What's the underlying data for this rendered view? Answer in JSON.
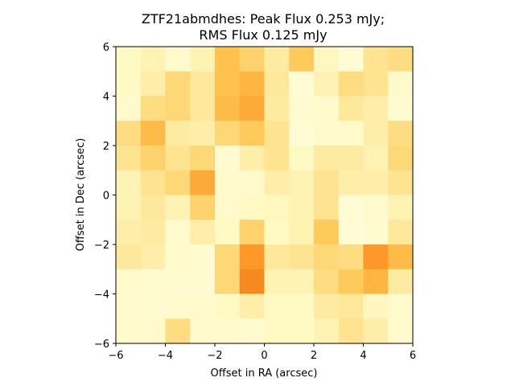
{
  "chart_data": {
    "type": "heatmap",
    "title_line1": "ZTF21abmdhes: Peak Flux 0.253 mJy;",
    "title_line2": "RMS Flux 0.125 mJy",
    "xlabel": "Offset in RA (arcsec)",
    "ylabel": "Offset in Dec (arcsec)",
    "xlim": [
      -6,
      6
    ],
    "ylim": [
      -6,
      6
    ],
    "xticks": [
      -6,
      -4,
      -2,
      0,
      2,
      4,
      6
    ],
    "yticks": [
      -6,
      -4,
      -2,
      0,
      2,
      4,
      6
    ],
    "xtick_labels": [
      "−6",
      "−4",
      "−2",
      "0",
      "2",
      "4",
      "6"
    ],
    "ytick_labels": [
      "−6",
      "−4",
      "−2",
      "0",
      "2",
      "4",
      "6"
    ],
    "colormap": "YlOrBr",
    "vmin": 0,
    "vmax": 1,
    "grid_size": 12,
    "rows_top_to_bottom": [
      [
        0.1,
        0.15,
        0.08,
        0.15,
        0.38,
        0.32,
        0.2,
        0.35,
        0.12,
        0.05,
        0.25,
        0.28
      ],
      [
        0.1,
        0.18,
        0.3,
        0.22,
        0.38,
        0.42,
        0.22,
        0.05,
        0.15,
        0.28,
        0.25,
        0.08
      ],
      [
        0.08,
        0.28,
        0.3,
        0.22,
        0.4,
        0.45,
        0.2,
        0.06,
        0.08,
        0.22,
        0.18,
        0.06
      ],
      [
        0.28,
        0.4,
        0.2,
        0.18,
        0.3,
        0.35,
        0.25,
        0.05,
        0.08,
        0.08,
        0.18,
        0.28
      ],
      [
        0.25,
        0.32,
        0.25,
        0.3,
        0.06,
        0.18,
        0.25,
        0.1,
        0.2,
        0.2,
        0.15,
        0.3
      ],
      [
        0.15,
        0.25,
        0.3,
        0.45,
        0.08,
        0.08,
        0.18,
        0.15,
        0.25,
        0.18,
        0.18,
        0.25
      ],
      [
        0.15,
        0.22,
        0.15,
        0.32,
        0.08,
        0.1,
        0.12,
        0.15,
        0.25,
        0.05,
        0.08,
        0.15
      ],
      [
        0.18,
        0.2,
        0.08,
        0.18,
        0.1,
        0.32,
        0.1,
        0.15,
        0.35,
        0.05,
        0.06,
        0.22
      ],
      [
        0.22,
        0.18,
        0.08,
        0.06,
        0.3,
        0.5,
        0.22,
        0.25,
        0.3,
        0.28,
        0.5,
        0.4
      ],
      [
        0.08,
        0.06,
        0.06,
        0.06,
        0.3,
        0.55,
        0.15,
        0.15,
        0.28,
        0.35,
        0.42,
        0.2
      ],
      [
        0.08,
        0.06,
        0.08,
        0.08,
        0.1,
        0.18,
        0.1,
        0.1,
        0.2,
        0.22,
        0.12,
        0.08
      ],
      [
        0.08,
        0.08,
        0.28,
        0.08,
        0.08,
        0.06,
        0.1,
        0.1,
        0.15,
        0.25,
        0.18,
        0.08
      ]
    ]
  }
}
